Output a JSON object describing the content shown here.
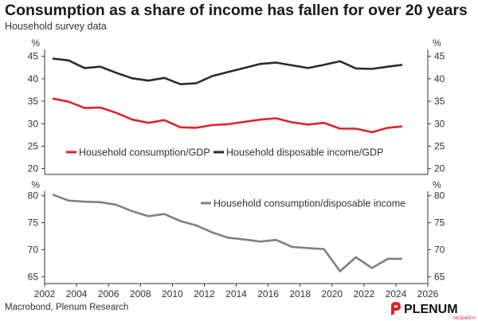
{
  "title": "Consumption as a share of income has fallen for over 20 years",
  "subtitle": "Household survey data",
  "source": "Macrobond, Plenum Research",
  "logo": {
    "name": "PLENUM",
    "sub": "RESEARCH"
  },
  "colors": {
    "red": "#e0222e",
    "black": "#2b2b2b",
    "grey": "#808080"
  },
  "chart_data": [
    {
      "type": "line",
      "unit_label": "%",
      "ylim": [
        20,
        45
      ],
      "yticks": [
        20,
        25,
        30,
        35,
        40,
        45
      ],
      "xlim": [
        2002,
        2026
      ],
      "legend_position": "bottom-left",
      "x": [
        2002.5,
        2003.5,
        2004.5,
        2005.5,
        2006.5,
        2007.5,
        2008.5,
        2009.5,
        2010.5,
        2011.5,
        2012.5,
        2013.5,
        2014.5,
        2015.5,
        2016.5,
        2017.5,
        2018.5,
        2019.5,
        2020.5,
        2021.5,
        2022.5,
        2023.5,
        2024.4
      ],
      "series": [
        {
          "name": "Household consumption/GDP",
          "color": "#e0222e",
          "values": [
            35.6,
            34.9,
            33.5,
            33.6,
            32.4,
            30.9,
            30.2,
            30.8,
            29.2,
            29.1,
            29.7,
            29.9,
            30.4,
            30.9,
            31.2,
            30.3,
            29.8,
            30.2,
            28.9,
            28.9,
            28.1,
            29.1,
            29.4
          ]
        },
        {
          "name": "Household disposable income/GDP",
          "color": "#2b2b2b",
          "values": [
            44.5,
            44.1,
            42.4,
            42.7,
            41.3,
            40.1,
            39.6,
            40.2,
            38.8,
            39.0,
            40.6,
            41.5,
            42.4,
            43.3,
            43.6,
            43.0,
            42.4,
            43.1,
            43.9,
            42.3,
            42.2,
            42.7,
            43.1
          ]
        }
      ]
    },
    {
      "type": "line",
      "unit_label": "%",
      "ylim": [
        65,
        80
      ],
      "yticks": [
        65,
        70,
        75,
        80
      ],
      "xlim": [
        2002,
        2026
      ],
      "xticks": [
        2002,
        2004,
        2006,
        2008,
        2010,
        2012,
        2014,
        2016,
        2018,
        2020,
        2022,
        2024,
        2026
      ],
      "legend_position": "top-right",
      "x": [
        2002.5,
        2003.5,
        2004.5,
        2005.5,
        2006.5,
        2007.5,
        2008.5,
        2009.5,
        2010.5,
        2011.5,
        2012.5,
        2013.5,
        2014.5,
        2015.5,
        2016.5,
        2017.5,
        2018.5,
        2019.5,
        2020.5,
        2021.5,
        2022.5,
        2023.5,
        2024.4
      ],
      "series": [
        {
          "name": "Household consumption/disposable income",
          "color": "#808080",
          "values": [
            80.2,
            79.1,
            78.9,
            78.8,
            78.3,
            77.1,
            76.2,
            76.6,
            75.3,
            74.5,
            73.2,
            72.2,
            71.9,
            71.5,
            71.8,
            70.5,
            70.3,
            70.1,
            66.0,
            68.6,
            66.6,
            68.3,
            68.3
          ]
        }
      ]
    }
  ]
}
